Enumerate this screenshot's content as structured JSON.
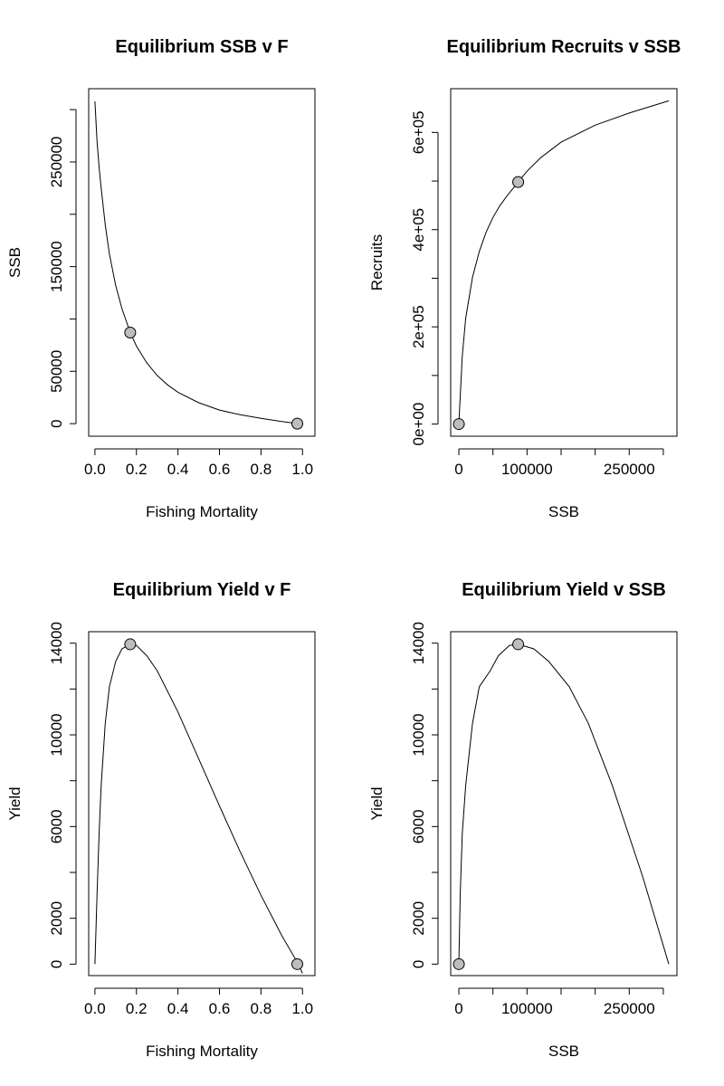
{
  "chart_data": [
    {
      "type": "line",
      "title": "Equilibrium SSB v F",
      "xlabel": "Fishing Mortality",
      "ylabel": "SSB",
      "xlim": [
        -0.03,
        1.06
      ],
      "ylim": [
        -12000,
        320000
      ],
      "x_ticks": [
        0,
        0.2,
        0.4,
        0.6,
        0.8,
        1.0
      ],
      "x_tick_labels": [
        "0.0",
        "0.2",
        "0.4",
        "0.6",
        "0.8",
        "1.0"
      ],
      "y_ticks": [
        0,
        50000,
        100000,
        150000,
        200000,
        250000,
        300000
      ],
      "y_tick_labels": [
        "0",
        "50000",
        "",
        "150000",
        "",
        "250000",
        ""
      ],
      "series": [
        {
          "x": [
            0.0,
            0.01,
            0.02,
            0.03,
            0.05,
            0.07,
            0.1,
            0.13,
            0.17,
            0.2,
            0.25,
            0.3,
            0.35,
            0.4,
            0.5,
            0.6,
            0.7,
            0.8,
            0.9,
            0.98
          ],
          "y": [
            308000,
            270000,
            245000,
            225000,
            190000,
            162000,
            132000,
            110000,
            87000,
            74000,
            58000,
            46000,
            37000,
            30000,
            20000,
            13000,
            8500,
            5000,
            2000,
            0
          ]
        }
      ],
      "points": {
        "x": [
          0.17,
          0.975
        ],
        "y": [
          87000,
          0
        ]
      }
    },
    {
      "type": "line",
      "title": "Equilibrium Recruits v SSB",
      "xlabel": "SSB",
      "ylabel": "Recruits",
      "xlim": [
        -12000,
        320000
      ],
      "ylim": [
        -25000,
        690000
      ],
      "x_ticks": [
        0,
        50000,
        100000,
        150000,
        200000,
        250000,
        300000
      ],
      "x_tick_labels": [
        "0",
        "",
        "100000",
        "",
        "",
        "250000",
        ""
      ],
      "y_ticks": [
        0,
        100000,
        200000,
        300000,
        400000,
        500000,
        600000
      ],
      "y_tick_labels": [
        "0e+00",
        "",
        "2e+05",
        "",
        "4e+05",
        "",
        "6e+05"
      ],
      "series": [
        {
          "x": [
            0,
            5000,
            10000,
            20000,
            30000,
            40000,
            50000,
            60000,
            70000,
            87000,
            100000,
            120000,
            150000,
            200000,
            250000,
            308000
          ],
          "y": [
            0,
            140000,
            218000,
            302000,
            355000,
            395000,
            425000,
            449000,
            468000,
            498000,
            520000,
            548000,
            580000,
            615000,
            640000,
            665000
          ]
        }
      ],
      "points": {
        "x": [
          0,
          87000
        ],
        "y": [
          0,
          498000
        ]
      }
    },
    {
      "type": "line",
      "title": "Equilibrium Yield v F",
      "xlabel": "Fishing Mortality",
      "ylabel": "Yield",
      "xlim": [
        -0.03,
        1.06
      ],
      "ylim": [
        -500,
        14500
      ],
      "x_ticks": [
        0,
        0.2,
        0.4,
        0.6,
        0.8,
        1.0
      ],
      "x_tick_labels": [
        "0.0",
        "0.2",
        "0.4",
        "0.6",
        "0.8",
        "1.0"
      ],
      "y_ticks": [
        0,
        2000,
        4000,
        6000,
        8000,
        10000,
        12000,
        14000
      ],
      "y_tick_labels": [
        "0",
        "2000",
        "",
        "6000",
        "",
        "10000",
        "",
        "14000"
      ],
      "series": [
        {
          "x": [
            0.0,
            0.01,
            0.02,
            0.03,
            0.05,
            0.07,
            0.1,
            0.13,
            0.17,
            0.2,
            0.25,
            0.3,
            0.4,
            0.5,
            0.6,
            0.7,
            0.8,
            0.9,
            0.98,
            1.0
          ],
          "y": [
            0,
            3000,
            5700,
            7800,
            10500,
            12100,
            13200,
            13750,
            13950,
            13900,
            13450,
            12800,
            11000,
            8950,
            6900,
            4900,
            3000,
            1250,
            0,
            -400
          ]
        }
      ],
      "points": {
        "x": [
          0.17,
          0.975
        ],
        "y": [
          13950,
          0
        ]
      }
    },
    {
      "type": "line",
      "title": "Equilibrium Yield v SSB",
      "xlabel": "SSB",
      "ylabel": "Yield",
      "xlim": [
        -12000,
        320000
      ],
      "ylim": [
        -500,
        14500
      ],
      "x_ticks": [
        0,
        50000,
        100000,
        150000,
        200000,
        250000,
        300000
      ],
      "x_tick_labels": [
        "0",
        "",
        "100000",
        "",
        "",
        "250000",
        ""
      ],
      "y_ticks": [
        0,
        2000,
        4000,
        6000,
        8000,
        10000,
        12000,
        14000
      ],
      "y_tick_labels": [
        "0",
        "2000",
        "",
        "6000",
        "",
        "10000",
        "",
        "14000"
      ],
      "series": [
        {
          "x": [
            0,
            2000,
            5000,
            10000,
            20000,
            30000,
            46000,
            58000,
            74000,
            87000,
            110000,
            132000,
            162000,
            190000,
            225000,
            270000,
            308000
          ],
          "y": [
            0,
            3000,
            5700,
            7800,
            10500,
            12100,
            12800,
            13450,
            13900,
            13950,
            13750,
            13200,
            12100,
            10500,
            7800,
            3800,
            0
          ]
        }
      ],
      "points": {
        "x": [
          0,
          87000
        ],
        "y": [
          0,
          13950
        ]
      }
    }
  ]
}
